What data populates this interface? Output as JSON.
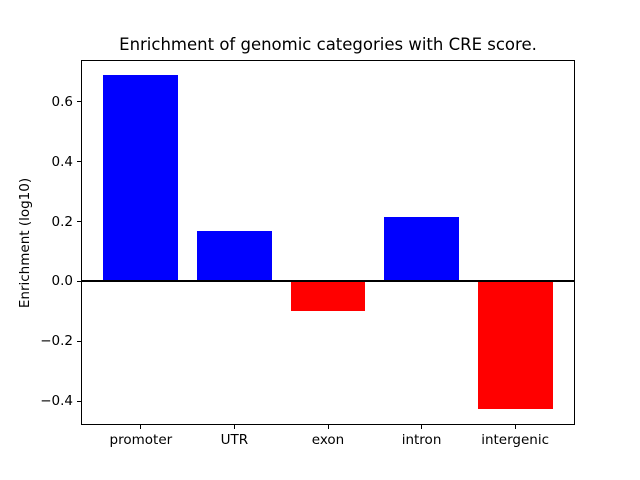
{
  "chart_data": {
    "type": "bar",
    "title": "Enrichment of genomic categories with CRE score.",
    "xlabel": "",
    "ylabel": "Enrichment (log10)",
    "categories": [
      "promoter",
      "UTR",
      "exon",
      "intron",
      "intergenic"
    ],
    "values": [
      0.69,
      0.17,
      -0.1,
      0.215,
      -0.425
    ],
    "bar_colors": [
      "#0000ff",
      "#0000ff",
      "#ff0000",
      "#0000ff",
      "#ff0000"
    ],
    "positive_color": "#0000ff",
    "negative_color": "#ff0000",
    "bar_width": 0.8,
    "xlim": [
      -0.64,
      4.64
    ],
    "ylim": [
      -0.48,
      0.74
    ],
    "y_ticks": [
      0.6,
      0.4,
      0.2,
      0.0,
      -0.2,
      -0.4
    ],
    "y_tick_labels": [
      "0.6",
      "0.4",
      "0.2",
      "0.0",
      "−0.2",
      "−0.4"
    ],
    "zero_line": {
      "y": 0.0,
      "color": "#000000",
      "linewidth": 2
    },
    "grid": false,
    "legend": null,
    "frame_color": "#000000",
    "background": "#ffffff",
    "text_color": "#000000"
  }
}
